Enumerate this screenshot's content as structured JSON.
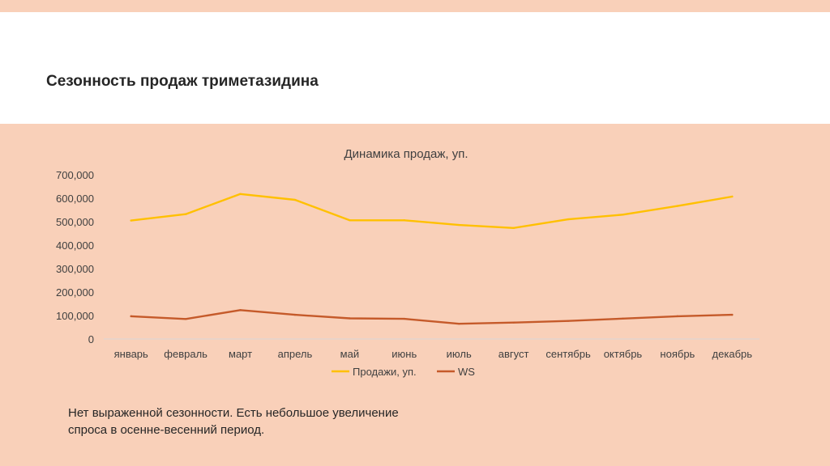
{
  "slide": {
    "title": "Сезонность продаж триметазидина",
    "note": "Нет выраженной сезонности. Есть небольшое увеличение спроса в осенне-весенний период."
  },
  "colors": {
    "background": "#f9d0b9",
    "header": "#ffffff",
    "sales_line": "#ffc000",
    "ws_line": "#c55a2a"
  },
  "chart_data": {
    "type": "line",
    "title": "Динамика продаж, уп.",
    "xlabel": "",
    "ylabel": "",
    "categories": [
      "январь",
      "февраль",
      "март",
      "апрель",
      "май",
      "июнь",
      "июль",
      "август",
      "сентябрь",
      "октябрь",
      "ноябрь",
      "декабрь"
    ],
    "ylim": [
      0,
      700000
    ],
    "yticks": [
      "0",
      "100,000",
      "200,000",
      "300,000",
      "400,000",
      "500,000",
      "600,000",
      "700,000"
    ],
    "grid": false,
    "legend_position": "bottom",
    "series": [
      {
        "name": "Продажи, уп.",
        "color": "#ffc000",
        "values": [
          505000,
          532000,
          618000,
          593000,
          506000,
          506000,
          486000,
          473000,
          510000,
          530000,
          567000,
          607000
        ]
      },
      {
        "name": "WS",
        "color": "#c55a2a",
        "values": [
          97000,
          85000,
          123000,
          103000,
          88000,
          86000,
          65000,
          70000,
          77000,
          87000,
          97000,
          103000
        ]
      }
    ]
  }
}
